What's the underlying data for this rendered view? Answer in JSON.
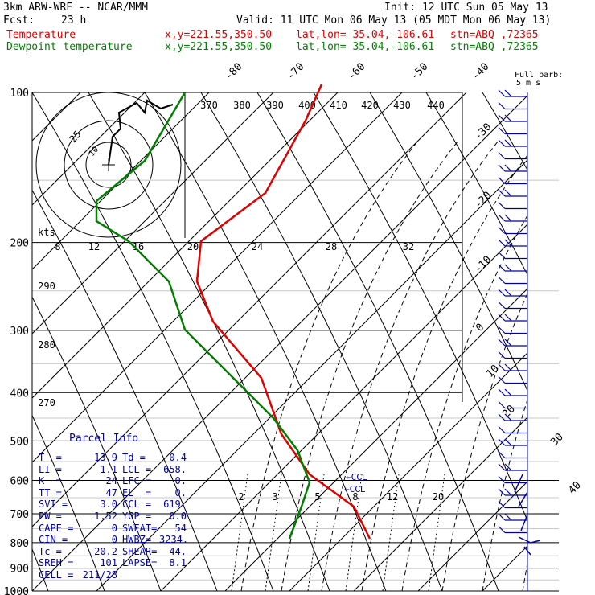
{
  "header": {
    "model": "3km ARW-WRF -- NCAR/MMM",
    "init": "Init: 12 UTC Sun 05 May 13",
    "fcst_label": "Fcst:",
    "fcst_value": "23 h",
    "valid": "Valid: 11 UTC Mon 06 May 13 (05 MDT Mon 06 May 13)",
    "temp_label": "Temperature",
    "dew_label": "Dewpoint temperature",
    "xy": "x,y=221.55,350.50",
    "latlon": "lat,lon= 35.04,-106.61",
    "stn": "stn=ABQ ,72365"
  },
  "colors": {
    "temperature": "#e00000",
    "dewpoint": "#008000",
    "parcel_text": "#0000a0",
    "wind": "#0000a0"
  },
  "chart_data": {
    "type": "line",
    "diagram": "skew-T log-P",
    "pressure_levels": [
      100,
      200,
      300,
      400,
      500,
      600,
      700,
      800,
      900,
      1000
    ],
    "isotherm_labels": [
      "-80",
      "-70",
      "-60",
      "-50",
      "-40",
      "-30",
      "-20",
      "-10",
      "0",
      "10",
      "20",
      "30",
      "40"
    ],
    "theta_labels": [
      "370",
      "380",
      "390",
      "400",
      "410",
      "420",
      "430",
      "440"
    ],
    "theta_left_labels": [
      "290",
      "280",
      "270"
    ],
    "mixing_ratio_labels": [
      "2",
      "3",
      "5",
      "8",
      "12",
      "20"
    ],
    "hodograph": {
      "units": "kts",
      "ring_labels": [
        "25",
        "10"
      ],
      "axis_labels": [
        "8",
        "12",
        "16",
        "20",
        "24",
        "28",
        "32"
      ]
    },
    "wind_legend": "Full barb: 5 m s",
    "ccl_markers": [
      "CCL",
      "CCL"
    ],
    "series": [
      {
        "name": "Temperature",
        "points": [
          [
            400,
            105
          ],
          [
            380,
            150
          ],
          [
            330,
            240
          ],
          [
            250,
            300
          ],
          [
            245,
            350
          ],
          [
            265,
            400
          ],
          [
            325,
            470
          ],
          [
            350,
            540
          ],
          [
            385,
            590
          ],
          [
            440,
            630
          ],
          [
            460,
            670
          ]
        ]
      },
      {
        "name": "Dewpoint temperature",
        "points": [
          [
            230,
            115
          ],
          [
            180,
            200
          ],
          [
            120,
            250
          ],
          [
            120,
            275
          ],
          [
            160,
            300
          ],
          [
            210,
            350
          ],
          [
            230,
            410
          ],
          [
            290,
            470
          ],
          [
            340,
            520
          ],
          [
            370,
            560
          ],
          [
            385,
            600
          ],
          [
            375,
            630
          ],
          [
            360,
            670
          ]
        ]
      }
    ]
  },
  "parcel": {
    "title": "Parcel Info",
    "rows": [
      [
        "T  =",
        "13.9",
        "Td =",
        "0.4"
      ],
      [
        "LI =",
        "1.1",
        "LCL =",
        "658."
      ],
      [
        "K  =",
        "24",
        "LFC =",
        "0."
      ],
      [
        "TT =",
        "47",
        "EL  =",
        "0."
      ],
      [
        "SVI =",
        "3.0",
        "CCL =",
        "619."
      ],
      [
        "PW =",
        "1.52",
        "YGP =",
        "0.0"
      ],
      [
        "CAPE =",
        "0",
        "SWEAT=",
        "54"
      ],
      [
        "CIN =",
        "0",
        "HWBZ=",
        "3234."
      ],
      [
        "Tc =",
        "20.2",
        "SHEAR=",
        "44."
      ],
      [
        "SREH =",
        "101",
        "LAPSE=",
        "8.1"
      ],
      [
        "CELL =",
        "211/28",
        "",
        ""
      ]
    ]
  }
}
